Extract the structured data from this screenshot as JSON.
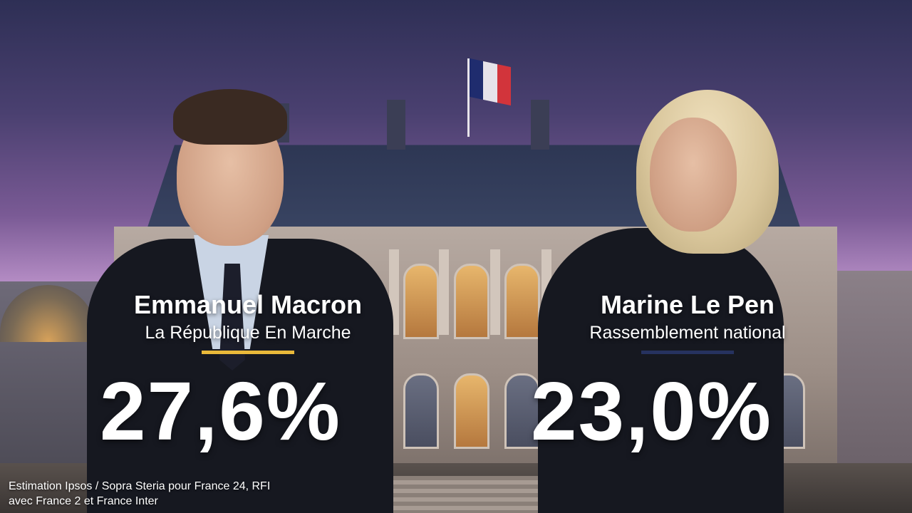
{
  "candidates": [
    {
      "name": "Emmanuel Macron",
      "party": "La République En Marche",
      "score": "27,6%",
      "accent_color": "#e9b93a"
    },
    {
      "name": "Marine Le Pen",
      "party": "Rassemblement national",
      "score": "23,0%",
      "accent_color": "#26325f"
    }
  ],
  "source": {
    "line1": "Estimation Ipsos / Sopra Steria pour France 24, RFI",
    "line2": "avec France 2 et France Inter"
  }
}
